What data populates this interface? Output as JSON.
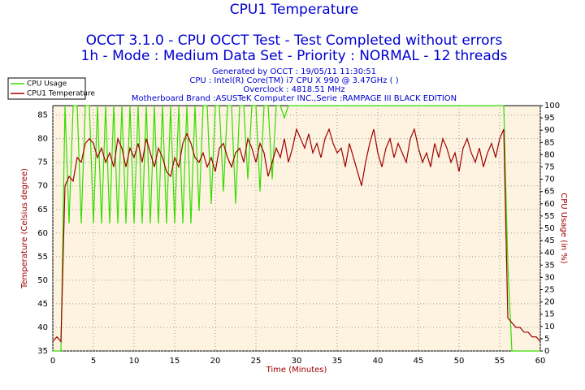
{
  "chart_data": {
    "type": "line",
    "title": "CPU1 Temperature",
    "subtitle": [
      "OCCT 3.1.0 - CPU OCCT Test - Test Completed without errors",
      "1h - Mode : Medium Data Set - Priority : NORMAL - 12 threads"
    ],
    "annotations": [
      "Generated by OCCT : 19/05/11 11:30:51",
      "CPU : Intel(R) Core(TM) i7 CPU X 990 @ 3.47GHz (  )",
      "Overclock : 4818.51 MHz",
      "Motherboard Brand :ASUSTeK Computer INC.,Serie :RAMPAGE III BLACK EDITION"
    ],
    "xlabel": "Time (Minutes)",
    "ylabel": "Temperature (Celsius degree)",
    "y2label": "CPU Usage (in %)",
    "x": [
      0,
      0.5,
      1,
      1.5,
      2,
      2.5,
      3,
      3.5,
      4,
      4.5,
      5,
      5.5,
      6,
      6.5,
      7,
      7.5,
      8,
      8.5,
      9,
      9.5,
      10,
      10.5,
      11,
      11.5,
      12,
      12.5,
      13,
      13.5,
      14,
      14.5,
      15,
      15.5,
      16,
      16.5,
      17,
      17.5,
      18,
      18.5,
      19,
      19.5,
      20,
      20.5,
      21,
      21.5,
      22,
      22.5,
      23,
      23.5,
      24,
      24.5,
      25,
      25.5,
      26,
      26.5,
      27,
      27.5,
      28,
      28.5,
      29,
      29.5,
      30,
      30.5,
      31,
      31.5,
      32,
      32.5,
      33,
      33.5,
      34,
      34.5,
      35,
      35.5,
      36,
      36.5,
      37,
      37.5,
      38,
      38.5,
      39,
      39.5,
      40,
      40.5,
      41,
      41.5,
      42,
      42.5,
      43,
      43.5,
      44,
      44.5,
      45,
      45.5,
      46,
      46.5,
      47,
      47.5,
      48,
      48.5,
      49,
      49.5,
      50,
      50.5,
      51,
      51.5,
      52,
      52.5,
      53,
      53.5,
      54,
      54.5,
      55,
      55.5,
      56,
      56.5,
      57,
      57.5,
      58,
      58.5,
      59,
      59.5,
      60
    ],
    "series": [
      {
        "name": "CPU Usage",
        "color": "#33dd00",
        "axis": "y2",
        "values": [
          0,
          0,
          0,
          100,
          52,
          100,
          100,
          52,
          100,
          100,
          52,
          100,
          52,
          100,
          52,
          100,
          52,
          100,
          52,
          100,
          52,
          100,
          52,
          100,
          52,
          100,
          52,
          100,
          52,
          100,
          52,
          100,
          52,
          100,
          52,
          100,
          57,
          100,
          100,
          60,
          100,
          100,
          65,
          100,
          100,
          60,
          100,
          100,
          70,
          100,
          100,
          65,
          100,
          100,
          70,
          100,
          100,
          95,
          100,
          100,
          100,
          100,
          100,
          100,
          100,
          100,
          100,
          100,
          100,
          100,
          100,
          100,
          100,
          100,
          100,
          100,
          100,
          100,
          100,
          100,
          100,
          100,
          100,
          100,
          100,
          100,
          100,
          100,
          100,
          100,
          100,
          100,
          100,
          100,
          100,
          100,
          100,
          100,
          100,
          100,
          100,
          100,
          100,
          100,
          100,
          100,
          100,
          100,
          100,
          100,
          100,
          100,
          35,
          0,
          0,
          0,
          0,
          0,
          0,
          0,
          0
        ]
      },
      {
        "name": "CPU1 Temperature",
        "color": "#a00000",
        "values": [
          37,
          38,
          37,
          70,
          72,
          71,
          76,
          75,
          79,
          80,
          79,
          76,
          78,
          75,
          77,
          74,
          80,
          78,
          74,
          78,
          76,
          79,
          75,
          80,
          77,
          74,
          78,
          76,
          73,
          72,
          76,
          74,
          79,
          81,
          79,
          76,
          75,
          77,
          74,
          76,
          73,
          78,
          79,
          76,
          74,
          77,
          78,
          75,
          80,
          78,
          75,
          79,
          77,
          72,
          75,
          78,
          76,
          80,
          75,
          78,
          82,
          80,
          78,
          81,
          77,
          79,
          76,
          80,
          82,
          79,
          77,
          78,
          74,
          79,
          76,
          73,
          70,
          75,
          79,
          82,
          77,
          74,
          78,
          80,
          76,
          79,
          77,
          75,
          80,
          82,
          78,
          75,
          77,
          74,
          79,
          76,
          80,
          78,
          75,
          77,
          73,
          78,
          80,
          77,
          75,
          78,
          74,
          77,
          79,
          76,
          80,
          82,
          42,
          41,
          40,
          40,
          39,
          39,
          38,
          38,
          37
        ]
      }
    ],
    "xlim": [
      0,
      60
    ],
    "xticks": [
      0,
      5,
      10,
      15,
      20,
      25,
      30,
      35,
      40,
      45,
      50,
      55,
      60
    ],
    "ylim": [
      35,
      87
    ],
    "yticks": [
      35,
      40,
      45,
      50,
      55,
      60,
      65,
      70,
      75,
      80,
      85
    ],
    "y2lim": [
      0,
      100
    ],
    "y2ticks": [
      0,
      5,
      10,
      15,
      20,
      25,
      30,
      35,
      40,
      45,
      50,
      55,
      60,
      65,
      70,
      75,
      80,
      85,
      90,
      95,
      100
    ],
    "grid": true,
    "legend": "upper left"
  }
}
